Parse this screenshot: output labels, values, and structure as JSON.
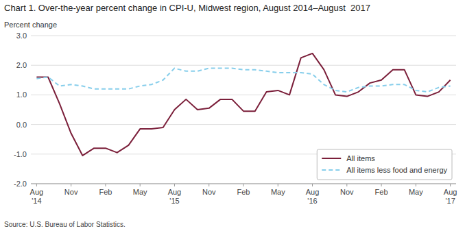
{
  "chart_data": {
    "type": "line",
    "title": "Chart 1. Over-the-year percent change in CPI-U, Midwest region, August 2014–August  2017",
    "y_label": "Percent change",
    "source": "Source: U.S. Bureau of Labor Statistics.",
    "categories": [
      "Aug\n'14",
      null,
      null,
      "Nov",
      null,
      null,
      "Feb",
      null,
      null,
      "May",
      null,
      null,
      "Aug\n'15",
      null,
      null,
      "Nov",
      null,
      null,
      "Feb",
      null,
      null,
      "May",
      null,
      null,
      "Aug\n'16",
      null,
      null,
      "Nov",
      null,
      null,
      "Feb",
      null,
      null,
      "May",
      null,
      null,
      "Aug\n'17"
    ],
    "series": [
      {
        "name": "All items",
        "color": "#7B1F3A",
        "line_style": "solid",
        "values": [
          1.6,
          1.6,
          0.7,
          -0.3,
          -1.05,
          -0.8,
          -0.8,
          -0.95,
          -0.7,
          -0.15,
          -0.15,
          -0.1,
          0.5,
          0.85,
          0.5,
          0.55,
          0.85,
          0.85,
          0.45,
          0.45,
          1.1,
          1.15,
          1.0,
          2.25,
          2.4,
          1.85,
          1.0,
          0.95,
          1.1,
          1.4,
          1.5,
          1.85,
          1.85,
          1.0,
          0.95,
          1.1,
          1.5
        ]
      },
      {
        "name": "All items less food and energy",
        "color": "#87CEEB",
        "line_style": "dashed",
        "values": [
          1.55,
          1.6,
          1.3,
          1.35,
          1.3,
          1.2,
          1.2,
          1.2,
          1.2,
          1.3,
          1.35,
          1.5,
          1.9,
          1.8,
          1.8,
          1.9,
          1.9,
          1.9,
          1.85,
          1.85,
          1.8,
          1.75,
          1.75,
          1.75,
          1.7,
          1.35,
          1.15,
          1.1,
          1.25,
          1.3,
          1.3,
          1.35,
          1.35,
          1.15,
          1.1,
          1.25,
          1.3
        ]
      }
    ],
    "ylim": [
      -2.0,
      3.0
    ],
    "yticks": [
      {
        "value": -2.0,
        "label": "-2.0"
      },
      {
        "value": -1.0,
        "label": "-1.0"
      },
      {
        "value": 0.0,
        "label": "0.0"
      },
      {
        "value": 1.0,
        "label": "1.0"
      },
      {
        "value": 2.0,
        "label": "2.0"
      },
      {
        "value": 3.0,
        "label": "3.0"
      }
    ],
    "grid": true,
    "legend": "lower right"
  }
}
